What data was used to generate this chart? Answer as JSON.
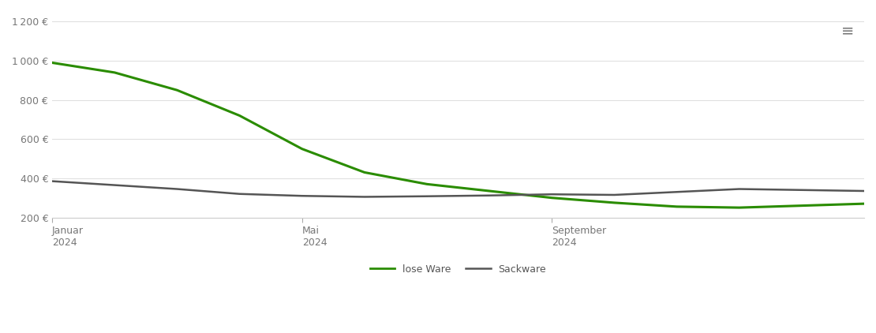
{
  "background_color": "#ffffff",
  "grid_color": "#e0e0e0",
  "ylim": [
    200,
    1250
  ],
  "yticks": [
    200,
    400,
    600,
    800,
    1000,
    1200
  ],
  "ytick_labels": [
    "200 €",
    "400 €",
    "600 €",
    "800 €",
    "1 000 €",
    "1 200 €"
  ],
  "xtick_labels": [
    "Januar\n2024",
    "Mai\n2024",
    "September\n2024"
  ],
  "xtick_positions": [
    0,
    4,
    8
  ],
  "legend_labels": [
    "lose Ware",
    "Sackware"
  ],
  "legend_colors": [
    "#2a8c00",
    "#555555"
  ],
  "line_lose_ware": [
    990,
    940,
    850,
    720,
    550,
    430,
    370,
    335,
    300,
    275,
    255,
    250,
    260,
    270
  ],
  "line_sackware": [
    385,
    365,
    345,
    320,
    310,
    305,
    308,
    312,
    318,
    315,
    330,
    345,
    340,
    335
  ],
  "n_points": 14,
  "x_range": [
    0,
    13
  ]
}
